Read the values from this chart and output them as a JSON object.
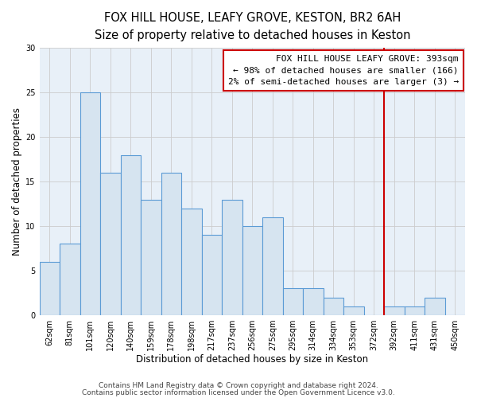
{
  "title": "FOX HILL HOUSE, LEAFY GROVE, KESTON, BR2 6AH",
  "subtitle": "Size of property relative to detached houses in Keston",
  "xlabel": "Distribution of detached houses by size in Keston",
  "ylabel": "Number of detached properties",
  "bar_labels": [
    "62sqm",
    "81sqm",
    "101sqm",
    "120sqm",
    "140sqm",
    "159sqm",
    "178sqm",
    "198sqm",
    "217sqm",
    "237sqm",
    "256sqm",
    "275sqm",
    "295sqm",
    "314sqm",
    "334sqm",
    "353sqm",
    "372sqm",
    "392sqm",
    "411sqm",
    "431sqm",
    "450sqm"
  ],
  "bar_values": [
    6,
    8,
    25,
    16,
    18,
    13,
    16,
    12,
    9,
    13,
    10,
    11,
    3,
    3,
    2,
    1,
    0,
    1,
    1,
    2,
    0
  ],
  "bar_color": "#d6e4f0",
  "bar_edge_color": "#5b9bd5",
  "ylim": [
    0,
    30
  ],
  "yticks": [
    0,
    5,
    10,
    15,
    20,
    25,
    30
  ],
  "vline_color": "#cc0000",
  "vline_position": 17.5,
  "annotation_line1": "FOX HILL HOUSE LEAFY GROVE: 393sqm",
  "annotation_line2": "← 98% of detached houses are smaller (166)",
  "annotation_line3": "2% of semi-detached houses are larger (3) →",
  "annotation_box_edge_color": "#cc0000",
  "footer_line1": "Contains HM Land Registry data © Crown copyright and database right 2024.",
  "footer_line2": "Contains public sector information licensed under the Open Government Licence v3.0.",
  "background_color": "#ffffff",
  "plot_bg_color": "#e8f0f8",
  "title_fontsize": 10.5,
  "subtitle_fontsize": 9,
  "axis_label_fontsize": 8.5,
  "tick_fontsize": 7,
  "footer_fontsize": 6.5,
  "annotation_fontsize": 8
}
